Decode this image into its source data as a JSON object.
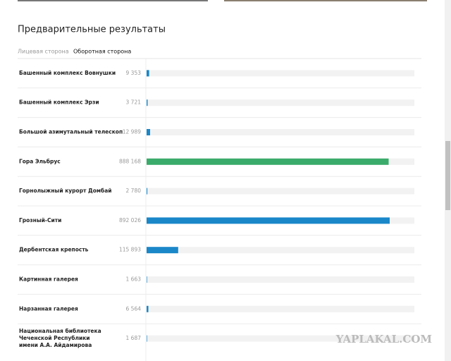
{
  "header": {
    "title": "Предварительные результаты"
  },
  "tabs": [
    "Лицевая сторона",
    "Оборотная сторона"
  ],
  "rows": [
    {
      "label": [
        "Башенный комплекс Вовнушки"
      ],
      "value": 9353,
      "value_label": "9 353",
      "color": "#1a87c9"
    },
    {
      "label": [
        "Башенный комплекс Эрзи"
      ],
      "value": 3721,
      "value_label": "3 721",
      "color": "#1a87c9"
    },
    {
      "label": [
        "Большой азимутальный телескоп"
      ],
      "value": 12989,
      "value_label": "12 989",
      "color": "#1a87c9"
    },
    {
      "label": [
        "Гора Эльбрус"
      ],
      "value": 888168,
      "value_label": "888 168",
      "color": "#3aab6a"
    },
    {
      "label": [
        "Горнолыжный курорт Домбай"
      ],
      "value": 2780,
      "value_label": "2 780",
      "color": "#1a87c9"
    },
    {
      "label": [
        "Грозный-Сити"
      ],
      "value": 892026,
      "value_label": "892 026",
      "color": "#1a87c9"
    },
    {
      "label": [
        "Дербентская крепость"
      ],
      "value": 115893,
      "value_label": "115 893",
      "color": "#1a87c9"
    },
    {
      "label": [
        "Картинная галерея"
      ],
      "value": 1663,
      "value_label": "1 663",
      "color": "#1a87c9"
    },
    {
      "label": [
        "Нарзанная галерея"
      ],
      "value": 6564,
      "value_label": "6 564",
      "color": "#1a87c9"
    },
    {
      "label": [
        "Национальная библиотека",
        "Чеченской Республики",
        "имени А.А. Айдамирова"
      ],
      "value": 1687,
      "value_label": "1 687",
      "color": "#1a87c9"
    }
  ],
  "watermark": "YAPLAKAL.COM"
}
